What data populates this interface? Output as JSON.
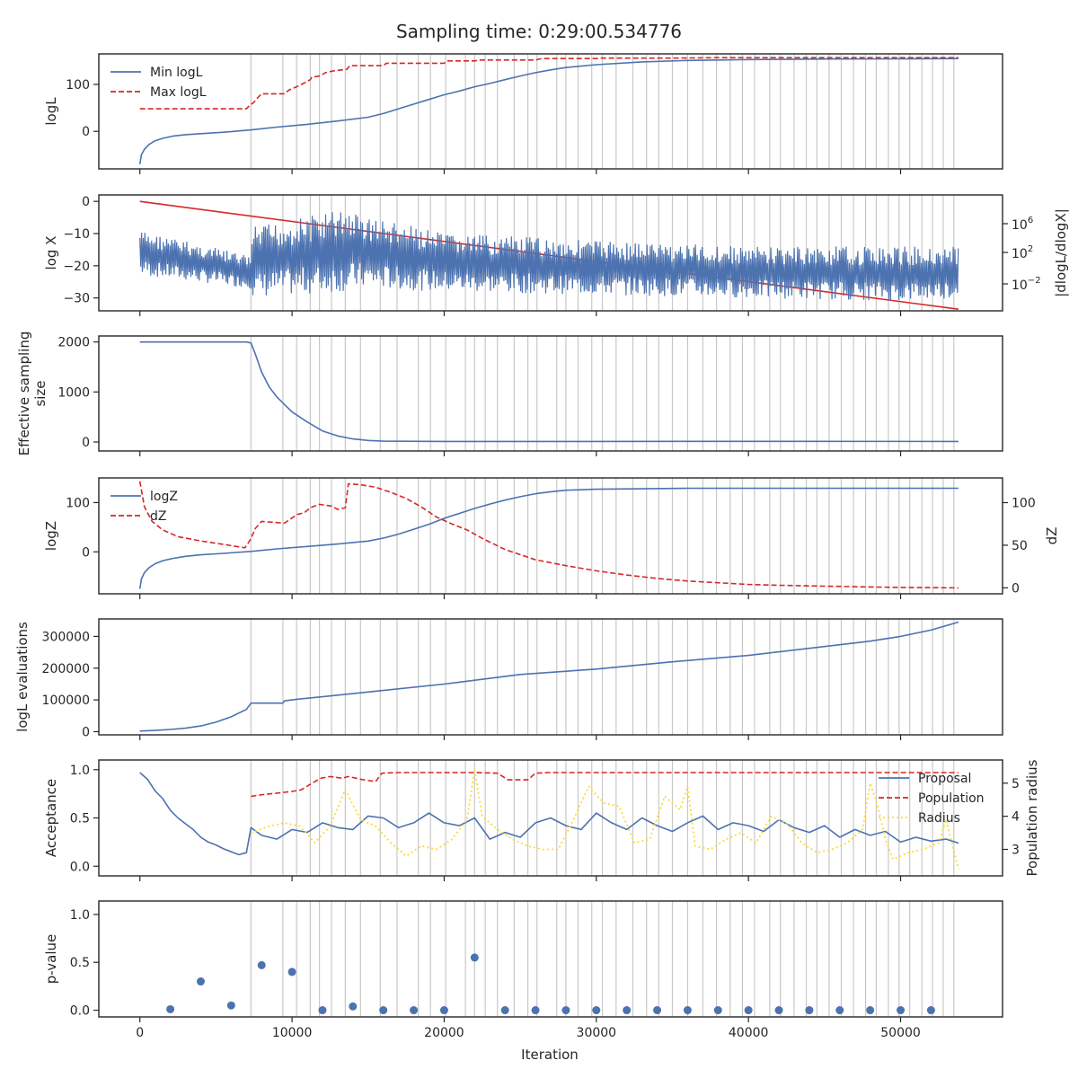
{
  "title": "Sampling time: 0:29:00.534776",
  "xlabel": "Iteration",
  "x_ticks": [
    0,
    10000,
    20000,
    30000,
    40000,
    50000
  ],
  "x_tick_labels": [
    "0",
    "10000",
    "20000",
    "30000",
    "40000",
    "50000"
  ],
  "xlim": [
    -2700,
    56700
  ],
  "vlines": [
    7300,
    9400,
    10300,
    11200,
    11800,
    12600,
    13500,
    14500,
    15800,
    16900,
    18300,
    19100,
    20100,
    21400,
    22000,
    22700,
    23500,
    24600,
    25500,
    26100,
    27400,
    28000,
    28800,
    29700,
    30400,
    31300,
    32400,
    33300,
    34100,
    35000,
    36000,
    37000,
    37900,
    38800,
    39600,
    40400,
    41400,
    42100,
    43000,
    43800,
    44500,
    45300,
    46100,
    46900,
    47700,
    48400,
    49200,
    49900,
    50600,
    51400,
    52100,
    52800,
    53500
  ],
  "colors": {
    "blue": "#4c72b0",
    "red": "#d62728",
    "yellow": "#ffd92f",
    "grid": "#c8c8c8",
    "axis": "#262626"
  },
  "chart_data": [
    {
      "type": "line",
      "ylabel": "logL",
      "ylim": [
        -80,
        165
      ],
      "yticks": [
        0,
        100
      ],
      "ytick_labels": [
        "0",
        "100"
      ],
      "legend_position": "upper left",
      "series": [
        {
          "name": "Min logL",
          "style": "solid",
          "color": "#4c72b0",
          "x": [
            0,
            100,
            300,
            600,
            1000,
            1500,
            2200,
            3000,
            4000,
            5500,
            7300,
            9000,
            11000,
            13000,
            15000,
            16000,
            17000,
            18000,
            19000,
            20000,
            21000,
            22000,
            23000,
            24000,
            25000,
            26000,
            27000,
            28000,
            30000,
            33000,
            36000,
            40000,
            45000,
            50000,
            53800
          ],
          "y": [
            -70,
            -50,
            -38,
            -28,
            -20,
            -15,
            -10,
            -7,
            -5,
            -2,
            3,
            9,
            15,
            22,
            30,
            38,
            48,
            58,
            68,
            78,
            86,
            95,
            102,
            110,
            118,
            125,
            131,
            136,
            142,
            148,
            151,
            153,
            154,
            154.5,
            155
          ]
        },
        {
          "name": "Max logL",
          "style": "dashed",
          "color": "#d62728",
          "x": [
            0,
            7000,
            7200,
            7500,
            7700,
            8000,
            9500,
            9800,
            10300,
            10600,
            11000,
            11200,
            11300,
            11800,
            12200,
            12600,
            13000,
            13600,
            13800,
            16000,
            16200,
            20000,
            20200,
            22000,
            22300,
            26000,
            26400,
            30000,
            30300,
            35000,
            38000,
            53800
          ],
          "y": [
            48,
            48,
            55,
            62,
            70,
            80,
            80,
            88,
            95,
            100,
            106,
            110,
            115,
            118,
            125,
            128,
            130,
            132,
            140,
            140,
            145,
            145,
            150,
            150,
            152,
            152,
            155,
            155,
            156,
            156,
            157,
            157
          ]
        }
      ]
    },
    {
      "type": "line",
      "ylabel": "log X",
      "ylim": [
        -34,
        2
      ],
      "yticks": [
        0,
        -10,
        -20,
        -30
      ],
      "ytick_labels": [
        "0",
        "−10",
        "−20",
        "−30"
      ],
      "y2label": "|dlogL/dlogX|",
      "y2scale": "log",
      "y2ticks": [
        "10^6",
        "10^2",
        "10^-2"
      ],
      "series": [
        {
          "name": "",
          "style": "solid",
          "color": "#d62728",
          "x": [
            0,
            53800
          ],
          "y": [
            0,
            -33.5
          ]
        },
        {
          "name": "",
          "style": "solid",
          "color": "#4c72b0",
          "axis": "right",
          "note": "noisy oscillating trace; envelope only",
          "x": [
            0,
            7300,
            7400,
            13500,
            14500,
            20000,
            30000,
            40000,
            50000,
            53800
          ],
          "y_upper": [
            -9,
            -17,
            -8,
            -2,
            -4,
            -10,
            -12,
            -14,
            -14,
            -14
          ],
          "y_lower": [
            -23,
            -27,
            -30,
            -28,
            -27,
            -28,
            -29,
            -30,
            -31,
            -30
          ]
        }
      ]
    },
    {
      "type": "line",
      "ylabel": "Effective sampling size",
      "ylim": [
        -180,
        2120
      ],
      "yticks": [
        0,
        1000,
        2000
      ],
      "ytick_labels": [
        "0",
        "1000",
        "2000"
      ],
      "series": [
        {
          "name": "",
          "style": "solid",
          "color": "#4c72b0",
          "x": [
            0,
            7000,
            7300,
            7600,
            8000,
            8500,
            9000,
            9500,
            10000,
            11000,
            12000,
            13000,
            14000,
            15000,
            16000,
            20000,
            30000,
            40000,
            53800
          ],
          "y": [
            2000,
            2000,
            1980,
            1750,
            1400,
            1100,
            900,
            750,
            600,
            400,
            220,
            120,
            60,
            30,
            15,
            10,
            10,
            12,
            10
          ]
        }
      ]
    },
    {
      "type": "line",
      "ylabel": "logZ",
      "ylim": [
        -85,
        150
      ],
      "yticks": [
        0,
        100
      ],
      "ytick_labels": [
        "0",
        "100"
      ],
      "y2label": "dZ",
      "y2lim": [
        -7,
        129
      ],
      "y2ticks": [
        0,
        50,
        100
      ],
      "y2tick_labels": [
        "0",
        "50",
        "100"
      ],
      "legend_position": "upper left",
      "series": [
        {
          "name": "logZ",
          "style": "solid",
          "color": "#4c72b0",
          "x": [
            0,
            100,
            300,
            600,
            1000,
            1500,
            2200,
            3000,
            4000,
            5500,
            7300,
            9000,
            11000,
            13000,
            15000,
            16000,
            17000,
            18000,
            19000,
            20000,
            21000,
            22000,
            23000,
            24000,
            25000,
            26000,
            27000,
            28000,
            30000,
            33000,
            36000,
            40000,
            45000,
            50000,
            53800
          ],
          "y": [
            -75,
            -55,
            -42,
            -32,
            -24,
            -18,
            -13,
            -9,
            -6,
            -3,
            1,
            6,
            11,
            16,
            22,
            28,
            36,
            46,
            56,
            68,
            78,
            88,
            97,
            105,
            112,
            118,
            122,
            125,
            127,
            128,
            129,
            129,
            129,
            129,
            129
          ]
        },
        {
          "name": "dZ",
          "style": "dashed",
          "color": "#d62728",
          "axis": "right",
          "x": [
            0,
            300,
            800,
            1500,
            2500,
            4000,
            5500,
            6900,
            7100,
            7300,
            7600,
            8000,
            9500,
            10000,
            10300,
            10800,
            11200,
            11800,
            12600,
            13000,
            13500,
            13700,
            14500,
            15500,
            16500,
            17500,
            18500,
            19500,
            20500,
            21500,
            22500,
            24000,
            26000,
            28000,
            30000,
            32000,
            34000,
            36000,
            38000,
            40000,
            42000,
            45000,
            48000,
            50000,
            53800
          ],
          "y": [
            125,
            95,
            78,
            68,
            60,
            55,
            51,
            47,
            52,
            58,
            70,
            78,
            76,
            82,
            86,
            88,
            94,
            98,
            96,
            92,
            94,
            122,
            121,
            118,
            112,
            105,
            95,
            83,
            75,
            68,
            58,
            45,
            33,
            26,
            20,
            15,
            11,
            8,
            6,
            4,
            3,
            2,
            1,
            0.5,
            0
          ]
        }
      ]
    },
    {
      "type": "line",
      "ylabel": "logL evaluations",
      "ylim": [
        -10000,
        355000
      ],
      "yticks": [
        0,
        100000,
        200000,
        300000
      ],
      "ytick_labels": [
        "0",
        "100000",
        "200000",
        "300000"
      ],
      "series": [
        {
          "name": "",
          "style": "solid",
          "color": "#4c72b0",
          "x": [
            0,
            1000,
            2000,
            3000,
            4000,
            5000,
            6000,
            7000,
            7300,
            9400,
            9500,
            10300,
            12000,
            15000,
            20000,
            25000,
            30000,
            35000,
            40000,
            45000,
            48000,
            50000,
            52000,
            53800
          ],
          "y": [
            2000,
            4000,
            7000,
            11000,
            18000,
            30000,
            47000,
            70000,
            90000,
            90000,
            97000,
            102000,
            110000,
            125000,
            150000,
            180000,
            197000,
            220000,
            240000,
            268000,
            285000,
            300000,
            320000,
            345000
          ]
        }
      ]
    },
    {
      "type": "line",
      "ylabel": "Acceptance",
      "ylim": [
        -0.1,
        1.1
      ],
      "yticks": [
        0,
        0.5,
        1
      ],
      "ytick_labels": [
        "0.0",
        "0.5",
        "1.0"
      ],
      "y2label": "Population radius",
      "y2lim": [
        2.2,
        5.7
      ],
      "y2ticks": [
        3,
        4,
        5
      ],
      "y2tick_labels": [
        "3",
        "4",
        "5"
      ],
      "legend_position": "upper right",
      "series": [
        {
          "name": "Proposal",
          "style": "solid",
          "color": "#4c72b0",
          "x": [
            0,
            500,
            1000,
            1500,
            2000,
            2500,
            3000,
            3500,
            4000,
            4500,
            5000,
            5500,
            6000,
            6500,
            7000,
            7300,
            8000,
            9000,
            10000,
            11000,
            12000,
            13000,
            14000,
            15000,
            16000,
            17000,
            18000,
            19000,
            20000,
            21000,
            22000,
            23000,
            24000,
            25000,
            26000,
            27000,
            28000,
            29000,
            30000,
            31000,
            32000,
            33000,
            34000,
            35000,
            36000,
            37000,
            38000,
            39000,
            40000,
            41000,
            42000,
            43000,
            44000,
            45000,
            46000,
            47000,
            48000,
            49000,
            50000,
            51000,
            52000,
            53000,
            53800
          ],
          "y": [
            0.97,
            0.9,
            0.78,
            0.7,
            0.58,
            0.5,
            0.44,
            0.38,
            0.3,
            0.25,
            0.22,
            0.18,
            0.15,
            0.12,
            0.14,
            0.4,
            0.32,
            0.28,
            0.38,
            0.35,
            0.45,
            0.4,
            0.38,
            0.52,
            0.5,
            0.4,
            0.45,
            0.55,
            0.45,
            0.42,
            0.5,
            0.28,
            0.35,
            0.3,
            0.45,
            0.5,
            0.42,
            0.38,
            0.55,
            0.45,
            0.38,
            0.5,
            0.42,
            0.36,
            0.45,
            0.52,
            0.38,
            0.45,
            0.42,
            0.36,
            0.48,
            0.4,
            0.35,
            0.42,
            0.3,
            0.38,
            0.32,
            0.36,
            0.25,
            0.3,
            0.26,
            0.28,
            0.24
          ]
        },
        {
          "name": "Population",
          "style": "dashed",
          "color": "#d62728",
          "axis": "right",
          "x": [
            7300,
            8000,
            9000,
            10000,
            10600,
            11500,
            11900,
            12500,
            13300,
            13700,
            14700,
            15500,
            15900,
            17000,
            18000,
            20000,
            22000,
            23500,
            24200,
            25500,
            26000,
            26800,
            30000,
            32000,
            36000,
            40000,
            44000,
            48000,
            50000,
            52000,
            53800
          ],
          "y": [
            4.6,
            4.65,
            4.7,
            4.75,
            4.8,
            5.05,
            5.15,
            5.2,
            5.15,
            5.2,
            5.1,
            5.05,
            5.3,
            5.32,
            5.32,
            5.32,
            5.32,
            5.3,
            5.1,
            5.1,
            5.3,
            5.32,
            5.32,
            5.32,
            5.32,
            5.32,
            5.32,
            5.32,
            5.32,
            5.32,
            5.32
          ]
        },
        {
          "name": "Radius",
          "style": "dotted",
          "color": "#ffd92f",
          "axis": "right",
          "x": [
            7300,
            8500,
            9500,
            10500,
            11500,
            12500,
            13500,
            14500,
            15500,
            16500,
            17500,
            18500,
            19500,
            20500,
            21500,
            22000,
            22500,
            23500,
            24500,
            25500,
            26500,
            27500,
            28500,
            29500,
            30500,
            31500,
            32500,
            33500,
            34500,
            35500,
            36000,
            36500,
            37500,
            38500,
            39500,
            40500,
            41500,
            42500,
            43500,
            44500,
            45500,
            46500,
            47500,
            48000,
            48500,
            49000,
            49500,
            50500,
            51500,
            52500,
            53000,
            53800
          ],
          "y": [
            3.5,
            3.7,
            3.8,
            3.7,
            3.2,
            3.7,
            4.8,
            3.9,
            3.7,
            3.2,
            2.8,
            3.1,
            3.0,
            3.3,
            3.9,
            5.4,
            4.0,
            3.6,
            3.3,
            3.1,
            3.0,
            3.0,
            3.9,
            4.9,
            4.4,
            4.3,
            3.2,
            3.3,
            4.6,
            4.2,
            4.9,
            3.1,
            3.0,
            3.3,
            3.5,
            3.2,
            4.0,
            3.8,
            3.2,
            2.9,
            3.0,
            3.2,
            3.6,
            5.0,
            4.3,
            3.3,
            2.7,
            2.9,
            3.0,
            3.2,
            3.9,
            2.4
          ]
        }
      ]
    },
    {
      "type": "scatter",
      "ylabel": "p-value",
      "ylim": [
        -0.07,
        1.14
      ],
      "yticks": [
        0,
        0.5,
        1
      ],
      "ytick_labels": [
        "0.0",
        "0.5",
        "1.0"
      ],
      "series": [
        {
          "name": "",
          "color": "#4c72b0",
          "x": [
            2000,
            4000,
            6000,
            8000,
            10000,
            12000,
            14000,
            16000,
            18000,
            20000,
            22000,
            24000,
            26000,
            28000,
            30000,
            32000,
            34000,
            36000,
            38000,
            40000,
            42000,
            44000,
            46000,
            48000,
            50000,
            52000
          ],
          "y": [
            0.01,
            0.3,
            0.05,
            0.47,
            0.4,
            0.0,
            0.04,
            0.0,
            0.0,
            0.0,
            0.55,
            0.0,
            0.0,
            0.0,
            0.0,
            0.0,
            0.0,
            0.0,
            0.0,
            0.0,
            0.0,
            0.0,
            0.0,
            0.0,
            0.0,
            0.0
          ]
        }
      ]
    }
  ]
}
